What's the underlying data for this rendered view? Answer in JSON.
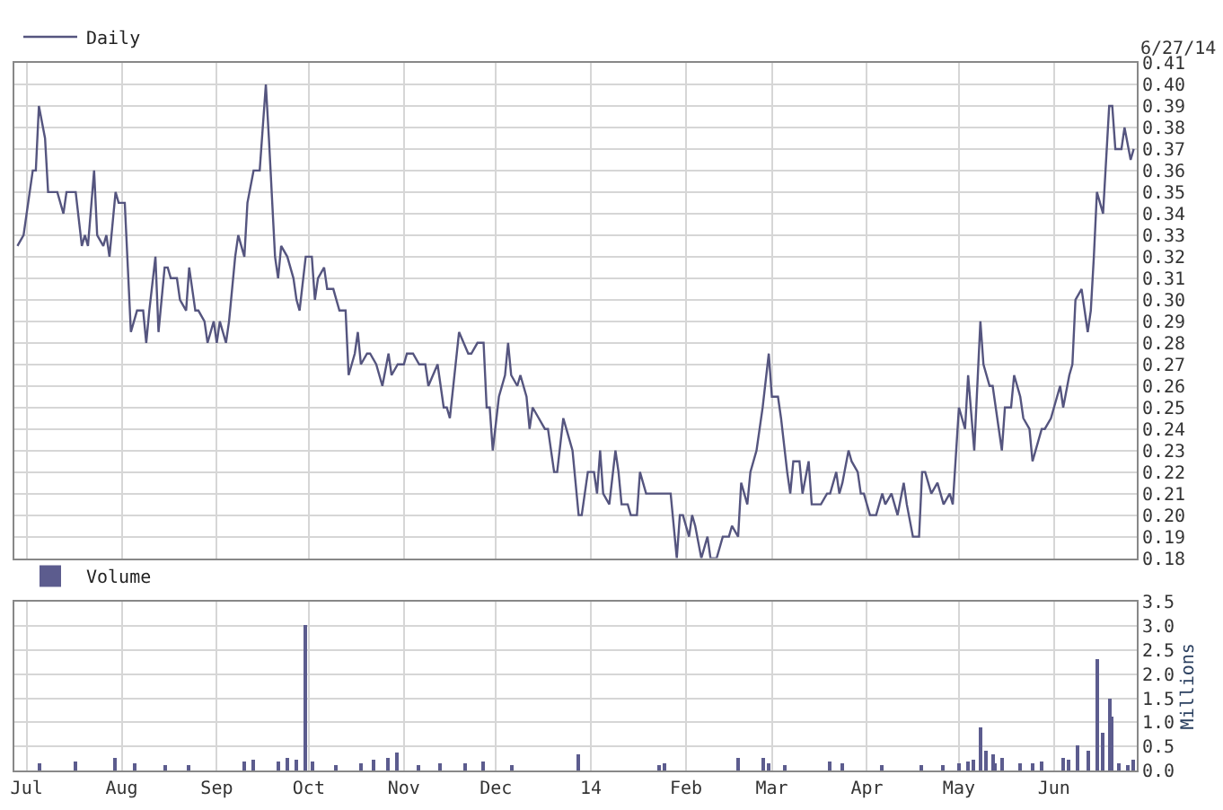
{
  "chart_data": [
    {
      "type": "line",
      "annotations": [
        "6/27/14"
      ],
      "legend": "top left",
      "grid": true,
      "tick_labels": "y",
      "series": [
        {
          "name": "Daily",
          "color": "#55557f",
          "x": [
            "2013-06-28",
            "2013-06-30",
            "2013-07-02",
            "2013-07-03",
            "2013-07-04",
            "2013-07-05",
            "2013-07-07",
            "2013-07-08",
            "2013-07-11",
            "2013-07-13",
            "2013-07-14",
            "2013-07-17",
            "2013-07-19",
            "2013-07-20",
            "2013-07-21",
            "2013-07-23",
            "2013-07-24",
            "2013-07-26",
            "2013-07-27",
            "2013-07-28",
            "2013-07-30",
            "2013-07-31",
            "2013-08-02",
            "2013-08-03",
            "2013-08-04",
            "2013-08-06",
            "2013-08-08",
            "2013-08-09",
            "2013-08-10",
            "2013-08-12",
            "2013-08-13",
            "2013-08-15",
            "2013-08-16",
            "2013-08-17",
            "2013-08-19",
            "2013-08-20",
            "2013-08-22",
            "2013-08-23",
            "2013-08-25",
            "2013-08-26",
            "2013-08-28",
            "2013-08-29",
            "2013-08-31",
            "2013-09-01",
            "2013-09-02",
            "2013-09-04",
            "2013-09-05",
            "2013-09-07",
            "2013-09-08",
            "2013-09-10",
            "2013-09-11",
            "2013-09-13",
            "2013-09-15",
            "2013-09-17",
            "2013-09-18",
            "2013-09-20",
            "2013-09-21",
            "2013-09-22",
            "2013-09-24",
            "2013-09-26",
            "2013-09-27",
            "2013-09-28",
            "2013-09-30",
            "2013-10-02",
            "2013-10-03",
            "2013-10-04",
            "2013-10-06",
            "2013-10-07",
            "2013-10-09",
            "2013-10-10",
            "2013-10-11",
            "2013-10-13",
            "2013-10-14",
            "2013-10-16",
            "2013-10-17",
            "2013-10-18",
            "2013-10-20",
            "2013-10-21",
            "2013-10-23",
            "2013-10-25",
            "2013-10-27",
            "2013-10-28",
            "2013-10-30",
            "2013-11-01",
            "2013-11-02",
            "2013-11-04",
            "2013-11-06",
            "2013-11-08",
            "2013-11-09",
            "2013-11-12",
            "2013-11-14",
            "2013-11-15",
            "2013-11-16",
            "2013-11-19",
            "2013-11-22",
            "2013-11-23",
            "2013-11-25",
            "2013-11-27",
            "2013-11-28",
            "2013-11-29",
            "2013-11-30",
            "2013-12-02",
            "2013-12-04",
            "2013-12-05",
            "2013-12-06",
            "2013-12-08",
            "2013-12-09",
            "2013-12-11",
            "2013-12-12",
            "2013-12-13",
            "2013-12-15",
            "2013-12-17",
            "2013-12-18",
            "2013-12-20",
            "2013-12-21",
            "2013-12-23",
            "2013-12-25",
            "2013-12-26",
            "2013-12-28",
            "2013-12-29",
            "2013-12-31",
            "2014-01-02",
            "2014-01-03",
            "2014-01-04",
            "2014-01-05",
            "2014-01-07",
            "2014-01-09",
            "2014-01-10",
            "2014-01-11",
            "2014-01-13",
            "2014-01-14",
            "2014-01-16",
            "2014-01-17",
            "2014-01-19",
            "2014-01-27",
            "2014-01-29",
            "2014-01-30",
            "2014-01-31",
            "2014-02-02",
            "2014-02-03",
            "2014-02-04",
            "2014-02-06",
            "2014-02-08",
            "2014-02-09",
            "2014-02-11",
            "2014-02-13",
            "2014-02-15",
            "2014-02-16",
            "2014-02-18",
            "2014-02-19",
            "2014-02-21",
            "2014-02-22",
            "2014-02-24",
            "2014-02-26",
            "2014-02-28",
            "2014-03-01",
            "2014-03-03",
            "2014-03-04",
            "2014-03-06",
            "2014-03-07",
            "2014-03-08",
            "2014-03-10",
            "2014-03-11",
            "2014-03-13",
            "2014-03-14",
            "2014-03-17",
            "2014-03-19",
            "2014-03-20",
            "2014-03-22",
            "2014-03-23",
            "2014-03-24",
            "2014-03-26",
            "2014-03-27",
            "2014-03-29",
            "2014-03-30",
            "2014-03-31",
            "2014-04-02",
            "2014-04-04",
            "2014-04-06",
            "2014-04-07",
            "2014-04-09",
            "2014-04-11",
            "2014-04-13",
            "2014-04-14",
            "2014-04-16",
            "2014-04-18",
            "2014-04-19",
            "2014-04-20",
            "2014-04-22",
            "2014-04-24",
            "2014-04-25",
            "2014-04-26",
            "2014-04-28",
            "2014-04-29",
            "2014-05-01",
            "2014-05-03",
            "2014-05-04",
            "2014-05-06",
            "2014-05-08",
            "2014-05-09",
            "2014-05-11",
            "2014-05-12",
            "2014-05-13",
            "2014-05-15",
            "2014-05-16",
            "2014-05-18",
            "2014-05-19",
            "2014-05-21",
            "2014-05-22",
            "2014-05-24",
            "2014-05-25",
            "2014-05-26",
            "2014-05-28",
            "2014-05-29",
            "2014-05-31",
            "2014-06-01",
            "2014-06-03",
            "2014-06-04",
            "2014-06-06",
            "2014-06-07",
            "2014-06-08",
            "2014-06-10",
            "2014-06-12",
            "2014-06-13",
            "2014-06-14",
            "2014-06-15",
            "2014-06-17",
            "2014-06-19",
            "2014-06-20",
            "2014-06-21",
            "2014-06-23",
            "2014-06-24",
            "2014-06-26",
            "2014-06-27"
          ],
          "values": [
            0.325,
            0.33,
            0.35,
            0.36,
            0.36,
            0.39,
            0.375,
            0.35,
            0.35,
            0.34,
            0.35,
            0.35,
            0.325,
            0.33,
            0.325,
            0.36,
            0.33,
            0.325,
            0.33,
            0.32,
            0.35,
            0.345,
            0.345,
            0.315,
            0.285,
            0.295,
            0.295,
            0.28,
            0.295,
            0.32,
            0.285,
            0.315,
            0.315,
            0.31,
            0.31,
            0.3,
            0.295,
            0.315,
            0.295,
            0.295,
            0.29,
            0.28,
            0.29,
            0.28,
            0.29,
            0.28,
            0.29,
            0.32,
            0.33,
            0.32,
            0.345,
            0.36,
            0.36,
            0.4,
            0.375,
            0.32,
            0.31,
            0.325,
            0.32,
            0.31,
            0.3,
            0.295,
            0.32,
            0.32,
            0.3,
            0.31,
            0.315,
            0.305,
            0.305,
            0.3,
            0.295,
            0.295,
            0.265,
            0.275,
            0.285,
            0.27,
            0.275,
            0.275,
            0.27,
            0.26,
            0.275,
            0.265,
            0.27,
            0.27,
            0.275,
            0.275,
            0.27,
            0.27,
            0.26,
            0.27,
            0.25,
            0.25,
            0.245,
            0.285,
            0.275,
            0.275,
            0.28,
            0.28,
            0.25,
            0.25,
            0.23,
            0.255,
            0.265,
            0.28,
            0.265,
            0.26,
            0.265,
            0.255,
            0.24,
            0.25,
            0.245,
            0.24,
            0.24,
            0.22,
            0.22,
            0.245,
            0.235,
            0.23,
            0.2,
            0.2,
            0.22,
            0.22,
            0.21,
            0.23,
            0.21,
            0.205,
            0.23,
            0.22,
            0.205,
            0.205,
            0.2,
            0.2,
            0.22,
            0.21,
            0.21,
            0.18,
            0.2,
            0.2,
            0.19,
            0.2,
            0.195,
            0.18,
            0.19,
            0.18,
            0.18,
            0.19,
            0.19,
            0.195,
            0.19,
            0.215,
            0.205,
            0.22,
            0.23,
            0.25,
            0.275,
            0.255,
            0.255,
            0.245,
            0.22,
            0.21,
            0.225,
            0.225,
            0.21,
            0.225,
            0.205,
            0.205,
            0.21,
            0.21,
            0.22,
            0.21,
            0.215,
            0.23,
            0.225,
            0.22,
            0.21,
            0.21,
            0.2,
            0.2,
            0.21,
            0.205,
            0.21,
            0.2,
            0.215,
            0.205,
            0.19,
            0.19,
            0.22,
            0.22,
            0.21,
            0.215,
            0.21,
            0.205,
            0.21,
            0.205,
            0.25,
            0.24,
            0.265,
            0.23,
            0.29,
            0.27,
            0.26,
            0.26,
            0.25,
            0.23,
            0.25,
            0.25,
            0.265,
            0.255,
            0.245,
            0.24,
            0.225,
            0.23,
            0.24,
            0.24,
            0.245,
            0.25,
            0.26,
            0.25,
            0.265,
            0.27,
            0.3,
            0.305,
            0.285,
            0.295,
            0.32,
            0.35,
            0.34,
            0.39,
            0.39,
            0.37,
            0.37,
            0.38,
            0.365,
            0.37
          ]
        }
      ],
      "xlim": [
        "2013-06-27",
        "2014-06-28"
      ],
      "xticks": [
        {
          "value": "2013-07-01",
          "label": null
        },
        {
          "value": "2013-08-01",
          "label": null
        },
        {
          "value": "2013-09-01",
          "label": null
        },
        {
          "value": "2013-10-01",
          "label": null
        },
        {
          "value": "2013-11-01",
          "label": null
        },
        {
          "value": "2013-12-01",
          "label": null
        },
        {
          "value": "2014-01-01",
          "label": null
        },
        {
          "value": "2014-02-01",
          "label": null
        },
        {
          "value": "2014-03-01",
          "label": null
        },
        {
          "value": "2014-04-01",
          "label": null
        },
        {
          "value": "2014-05-01",
          "label": null
        },
        {
          "value": "2014-06-01",
          "label": null
        }
      ],
      "ylim": [
        0.18,
        0.41
      ],
      "yticks": [
        0.18,
        0.19,
        {
          "value": 0.2,
          "label": "0.20"
        },
        0.21,
        0.22,
        0.23,
        0.24,
        0.25,
        0.26,
        0.27,
        0.28,
        0.29,
        {
          "value": 0.3,
          "label": "0.30"
        },
        0.31,
        0.32,
        0.33,
        0.34,
        0.35,
        0.36,
        0.37,
        0.38,
        0.39,
        {
          "value": 0.4,
          "label": "0.40"
        },
        0.41
      ]
    },
    {
      "type": "bar",
      "ylabel": "Millions",
      "legend": "top left",
      "grid": true,
      "series": [
        {
          "name": "Volume",
          "color": "#5c5c8e",
          "x": [
            "2013-07-05",
            "2013-07-17",
            "2013-07-30",
            "2013-08-05",
            "2013-08-15",
            "2013-08-23",
            "2013-09-10",
            "2013-09-13",
            "2013-09-21",
            "2013-09-24",
            "2013-09-27",
            "2013-09-30",
            "2013-10-02",
            "2013-10-10",
            "2013-10-18",
            "2013-10-22",
            "2013-10-27",
            "2013-10-30",
            "2013-11-06",
            "2013-11-13",
            "2013-11-21",
            "2013-11-27",
            "2013-12-06",
            "2013-12-28",
            "2014-01-23",
            "2014-01-25",
            "2014-02-18",
            "2014-02-26",
            "2014-02-28",
            "2014-03-05",
            "2014-03-20",
            "2014-03-24",
            "2014-04-06",
            "2014-04-19",
            "2014-04-26",
            "2014-05-01",
            "2014-05-04",
            "2014-05-06",
            "2014-05-08",
            "2014-05-10",
            "2014-05-12",
            "2014-05-13",
            "2014-05-15",
            "2014-05-21",
            "2014-05-25",
            "2014-05-28",
            "2014-06-04",
            "2014-06-06",
            "2014-06-09",
            "2014-06-12",
            "2014-06-15",
            "2014-06-17",
            "2014-06-19",
            "2014-06-20",
            "2014-06-22",
            "2014-06-25",
            "2014-06-27"
          ],
          "values": [
            0.15,
            0.18,
            0.25,
            0.15,
            0.12,
            0.09,
            0.18,
            0.22,
            0.18,
            0.24,
            0.21,
            3.0,
            0.18,
            0.09,
            0.15,
            0.22,
            0.25,
            0.36,
            0.12,
            0.15,
            0.15,
            0.18,
            0.12,
            0.33,
            0.1,
            0.15,
            0.27,
            0.27,
            0.15,
            0.1,
            0.18,
            0.15,
            0.1,
            0.09,
            0.1,
            0.15,
            0.18,
            0.21,
            0.9,
            0.4,
            0.33,
            0.15,
            0.25,
            0.15,
            0.15,
            0.18,
            0.25,
            0.21,
            0.52,
            0.4,
            2.3,
            0.78,
            1.5,
            1.13,
            0.15,
            0.1,
            0.2
          ]
        }
      ],
      "xlim": [
        "2013-06-27",
        "2014-06-28"
      ],
      "xticks": [
        {
          "value": "2013-07-01",
          "label": "Jul"
        },
        {
          "value": "2013-08-01",
          "label": "Aug"
        },
        {
          "value": "2013-09-01",
          "label": "Sep"
        },
        {
          "value": "2013-10-01",
          "label": "Oct"
        },
        {
          "value": "2013-11-01",
          "label": "Nov"
        },
        {
          "value": "2013-12-01",
          "label": "Dec"
        },
        {
          "value": "2014-01-01",
          "label": "14"
        },
        {
          "value": "2014-02-01",
          "label": "Feb"
        },
        {
          "value": "2014-03-01",
          "label": "Mar"
        },
        {
          "value": "2014-04-01",
          "label": "Apr"
        },
        {
          "value": "2014-05-01",
          "label": "May"
        },
        {
          "value": "2014-06-01",
          "label": "Jun"
        }
      ],
      "ylim": [
        0,
        3.5
      ],
      "yticks": [
        {
          "value": 0,
          "label": "0.0"
        },
        0.5,
        {
          "value": 1,
          "label": "1.0"
        },
        1.5,
        {
          "value": 2,
          "label": "2.0"
        },
        2.5,
        {
          "value": 3,
          "label": "3.0"
        },
        3.5
      ]
    }
  ]
}
